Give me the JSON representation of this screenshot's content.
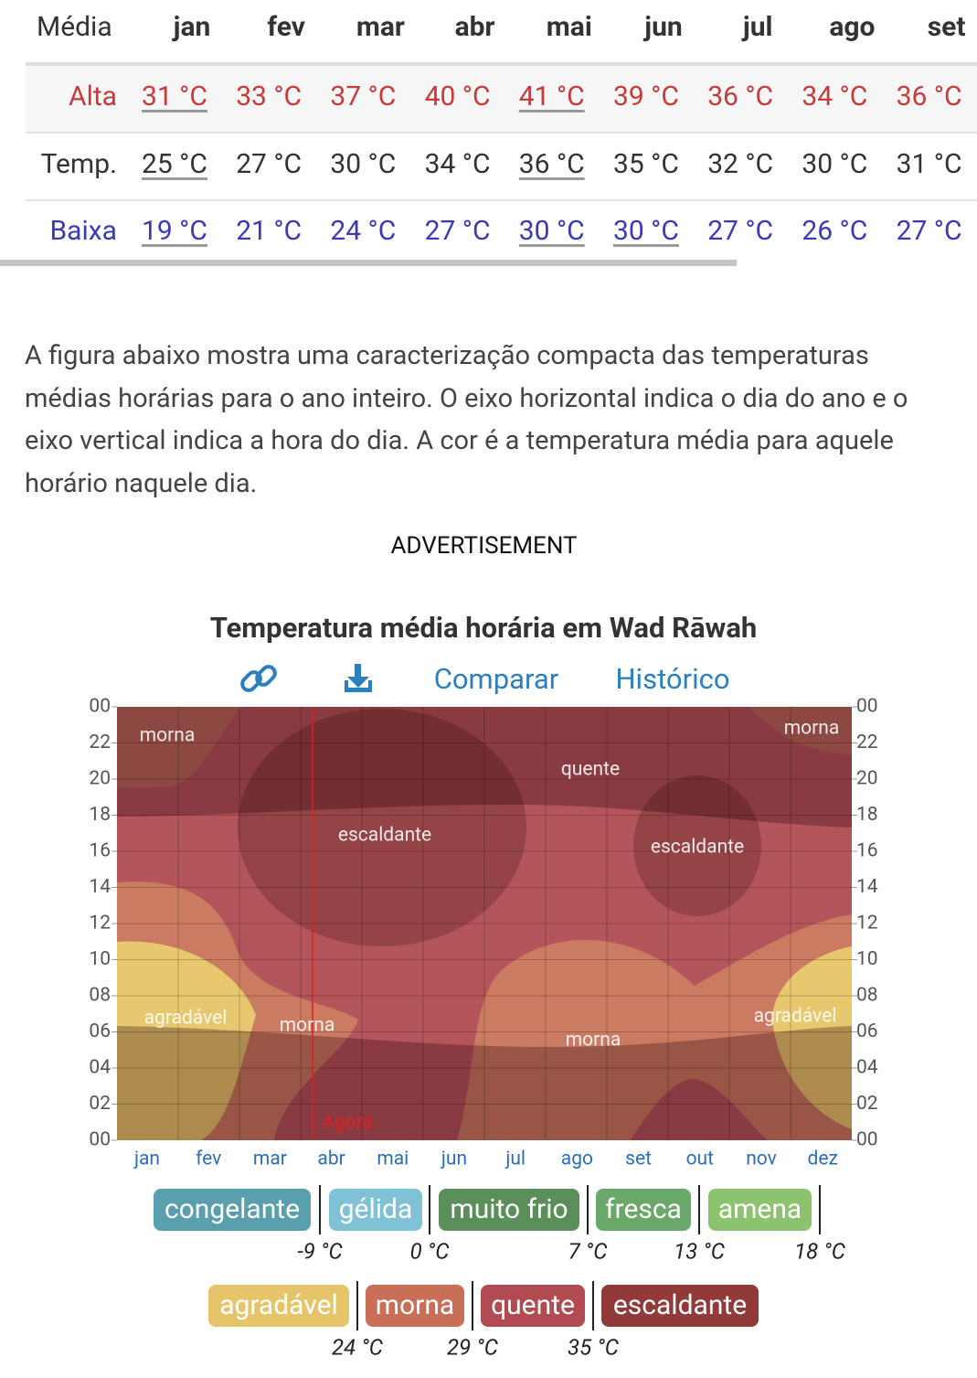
{
  "table": {
    "header": [
      "Média",
      "jan",
      "fev",
      "mar",
      "abr",
      "mai",
      "jun",
      "jul",
      "ago",
      "set"
    ],
    "rows": [
      {
        "label": "Alta",
        "cells": [
          "31 °C",
          "33 °C",
          "37 °C",
          "40 °C",
          "41 °C",
          "39 °C",
          "36 °C",
          "34 °C",
          "36 °C"
        ]
      },
      {
        "label": "Temp.",
        "cells": [
          "25 °C",
          "27 °C",
          "30 °C",
          "34 °C",
          "36 °C",
          "35 °C",
          "32 °C",
          "30 °C",
          "31 °C"
        ]
      },
      {
        "label": "Baixa",
        "cells": [
          "19 °C",
          "21 °C",
          "24 °C",
          "27 °C",
          "30 °C",
          "30 °C",
          "27 °C",
          "26 °C",
          "27 °C"
        ]
      }
    ]
  },
  "paragraph": "A figura abaixo mostra uma caracterização compacta das temperaturas médias horárias para o ano inteiro. O eixo horizontal indica o dia do ano e o eixo vertical indica a hora do dia. A cor é a temperatura média para aquele horário naquele dia.",
  "advertisement": "ADVERTISEMENT",
  "chart": {
    "title": "Temperatura média horária em Wad Rāwah",
    "links": [
      "Comparar",
      "Histórico"
    ],
    "hour_labels": [
      "00",
      "22",
      "20",
      "18",
      "16",
      "14",
      "12",
      "10",
      "08",
      "06",
      "04",
      "02",
      "00"
    ],
    "months": [
      "jan",
      "fev",
      "mar",
      "abr",
      "mai",
      "jun",
      "jul",
      "ago",
      "set",
      "out",
      "nov",
      "dez"
    ],
    "regions": [
      "morna",
      "morna",
      "quente",
      "escaldante",
      "escaldante",
      "agradável",
      "morna",
      "agradável",
      "morna"
    ],
    "now_label": "Agora",
    "legend": [
      {
        "name": "congelante",
        "color": "#5a9fae"
      },
      {
        "name": "gélida",
        "color": "#7fc2d5"
      },
      {
        "name": "muito frio",
        "color": "#5a8f5a"
      },
      {
        "name": "fresca",
        "color": "#6aa86a"
      },
      {
        "name": "amena",
        "color": "#8cc36e"
      },
      {
        "name": "agradável",
        "color": "#e6c56a"
      },
      {
        "name": "morna",
        "color": "#c96e57"
      },
      {
        "name": "quente",
        "color": "#b24a52"
      },
      {
        "name": "escaldante",
        "color": "#923a3a"
      }
    ],
    "thresholds": [
      "-9 °C",
      "0 °C",
      "7 °C",
      "13 °C",
      "18 °C",
      "24 °C",
      "29 °C",
      "35 °C"
    ]
  }
}
